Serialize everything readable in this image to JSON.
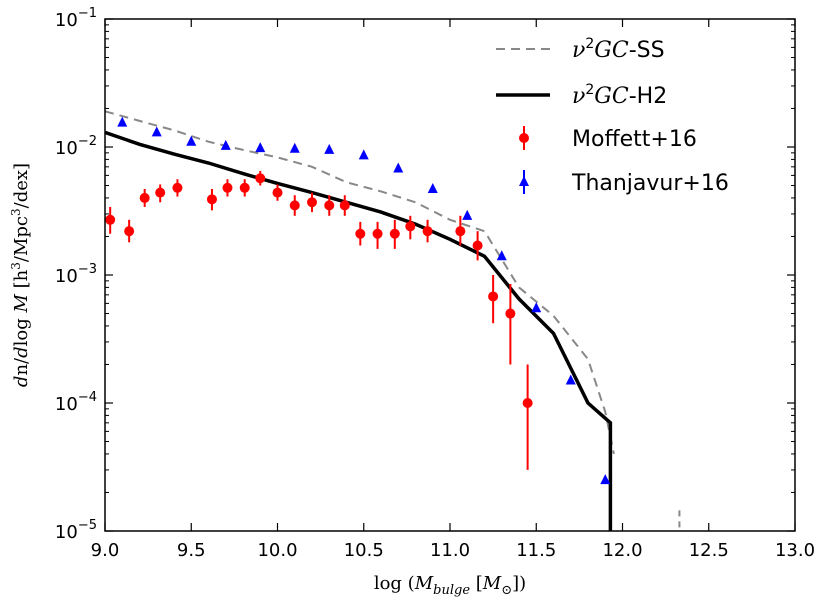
{
  "chart_data": {
    "type": "line",
    "xlabel": "log (M_bulge [M_⊙])",
    "ylabel": "dn/dlog M [h³/Mpc³/dex]",
    "xlim": [
      9.0,
      13.0
    ],
    "ylim": [
      1e-05,
      0.1
    ],
    "yscale": "log",
    "grid": false,
    "legend_position": "top-right",
    "x_ticks": [
      "9.0",
      "9.5",
      "10.0",
      "10.5",
      "11.0",
      "11.5",
      "12.0",
      "12.5",
      "13.0"
    ],
    "y_ticks": [
      {
        "value": 0.1,
        "base": "10",
        "exp": "−1"
      },
      {
        "value": 0.01,
        "base": "10",
        "exp": "−2"
      },
      {
        "value": 0.001,
        "base": "10",
        "exp": "−3"
      },
      {
        "value": 0.0001,
        "base": "10",
        "exp": "−4"
      },
      {
        "value": 1e-05,
        "base": "10",
        "exp": "−5"
      }
    ],
    "series": [
      {
        "name": "ν²GC-SS",
        "kind": "dashed-line",
        "color": "#888888",
        "x": [
          9.0,
          9.2,
          9.4,
          9.6,
          9.8,
          10.0,
          10.2,
          10.4,
          10.6,
          10.8,
          11.0,
          11.2,
          11.4,
          11.6,
          11.8,
          11.9,
          11.95
        ],
        "y": [
          0.019,
          0.016,
          0.0135,
          0.011,
          0.0095,
          0.0083,
          0.007,
          0.0053,
          0.0045,
          0.0037,
          0.0027,
          0.0022,
          0.0008,
          0.00048,
          0.00022,
          8.5e-05,
          4e-05
        ]
      },
      {
        "name": "ν²GC-H2",
        "kind": "solid-line",
        "color": "#000000",
        "x": [
          9.0,
          9.2,
          9.4,
          9.6,
          9.8,
          10.0,
          10.2,
          10.4,
          10.6,
          10.8,
          11.0,
          11.2,
          11.4,
          11.6,
          11.8,
          11.93,
          11.93
        ],
        "y": [
          0.013,
          0.0105,
          0.0088,
          0.0075,
          0.0062,
          0.0052,
          0.0044,
          0.0037,
          0.0031,
          0.0025,
          0.0019,
          0.0014,
          0.00065,
          0.00035,
          0.0001,
          7e-05,
          1e-05
        ]
      },
      {
        "name": "Moffett+16",
        "kind": "points-errorbars",
        "color": "#ff0000",
        "x": [
          9.03,
          9.14,
          9.23,
          9.32,
          9.42,
          9.62,
          9.71,
          9.81,
          9.9,
          10.0,
          10.1,
          10.2,
          10.3,
          10.39,
          10.48,
          10.58,
          10.68,
          10.77,
          10.87,
          11.06,
          11.16,
          11.25,
          11.35,
          11.45
        ],
        "y": [
          0.0027,
          0.0022,
          0.004,
          0.0044,
          0.0048,
          0.0039,
          0.0048,
          0.0048,
          0.0057,
          0.0044,
          0.0035,
          0.0037,
          0.0035,
          0.0035,
          0.0021,
          0.0021,
          0.0021,
          0.0024,
          0.0022,
          0.0022,
          0.0017,
          0.00068,
          0.0005,
          0.0001
        ],
        "y_low": [
          0.0021,
          0.0018,
          0.0034,
          0.0037,
          0.0041,
          0.0032,
          0.0041,
          0.0041,
          0.005,
          0.0038,
          0.0029,
          0.0031,
          0.0029,
          0.0029,
          0.0017,
          0.0016,
          0.0016,
          0.0019,
          0.0018,
          0.0017,
          0.0013,
          0.00042,
          0.0002,
          3e-05
        ],
        "y_high": [
          0.0034,
          0.0027,
          0.0047,
          0.0051,
          0.0056,
          0.0047,
          0.0056,
          0.0056,
          0.0065,
          0.0051,
          0.0042,
          0.0044,
          0.0042,
          0.0042,
          0.0026,
          0.0026,
          0.0027,
          0.0029,
          0.0027,
          0.0029,
          0.0022,
          0.001,
          0.00085,
          0.0002
        ]
      },
      {
        "name": "Thanjavur+16",
        "kind": "triangles",
        "color": "#0000ff",
        "x": [
          9.1,
          9.3,
          9.5,
          9.7,
          9.9,
          10.1,
          10.3,
          10.5,
          10.7,
          10.9,
          11.1,
          11.3,
          11.5,
          11.7,
          11.9
        ],
        "y": [
          0.0155,
          0.013,
          0.011,
          0.0102,
          0.0098,
          0.0097,
          0.0095,
          0.0086,
          0.0068,
          0.0047,
          0.0029,
          0.0014,
          0.00055,
          0.00015,
          2.5e-05
        ]
      }
    ]
  },
  "legend": {
    "ss_suffix": "-SS",
    "h2_suffix": "-H2",
    "model_prefix": "ν",
    "model_sup": "2",
    "model_italic": "GC"
  }
}
